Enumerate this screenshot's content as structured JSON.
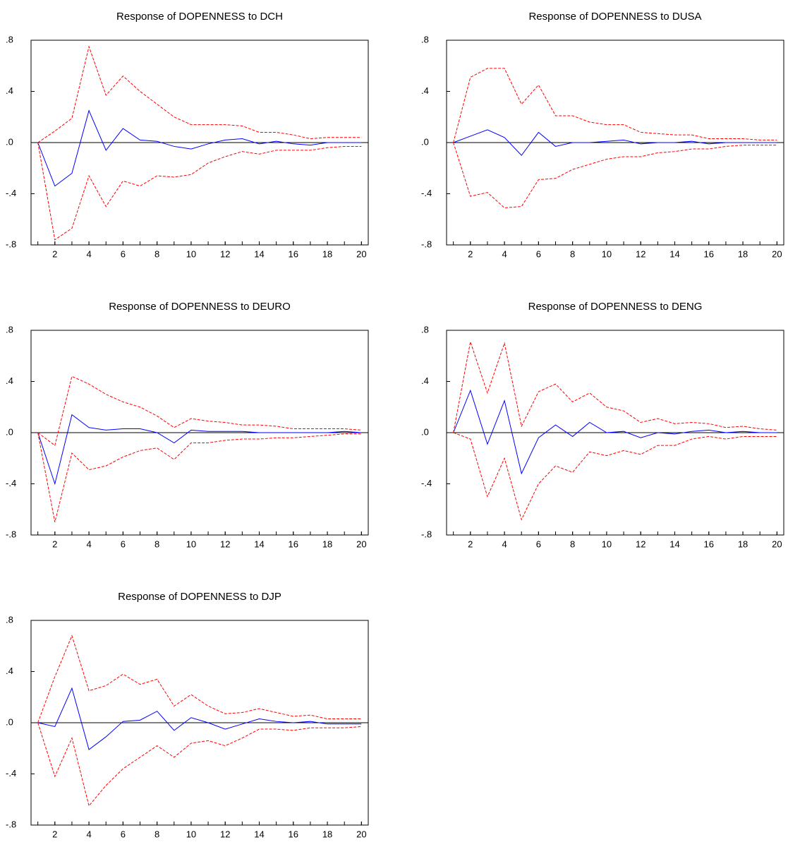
{
  "chart_data": [
    {
      "type": "line",
      "title": "Response of DOPENNESS to DCH",
      "x": [
        1,
        2,
        3,
        4,
        5,
        6,
        7,
        8,
        9,
        10,
        11,
        12,
        13,
        14,
        15,
        16,
        17,
        18,
        19,
        20
      ],
      "xlim": [
        0.6,
        20.4
      ],
      "xticks": [
        2,
        4,
        6,
        8,
        10,
        12,
        14,
        16,
        18,
        20
      ],
      "ylim": [
        -0.8,
        0.8
      ],
      "yticks": [
        {
          "value": -0.8,
          "label": "-.8"
        },
        {
          "value": -0.4,
          "label": "-.4"
        },
        {
          "value": 0,
          "label": ".0"
        },
        {
          "value": 0.4,
          "label": ".4"
        },
        {
          "value": 0.8,
          "label": ".8"
        }
      ],
      "series": [
        {
          "color": "#0000ff",
          "values": [
            0,
            -0.34,
            -0.24,
            0.25,
            -0.06,
            0.11,
            0.02,
            0.01,
            -0.03,
            -0.05,
            -0.01,
            0.02,
            0.03,
            -0.01,
            0.01,
            -0.01,
            -0.02,
            0,
            0,
            0
          ]
        },
        {
          "color": "#ff0000",
          "dashed": true,
          "values": [
            0,
            0.09,
            0.19,
            0.75,
            0.37,
            0.52,
            0.4,
            0.3,
            0.2,
            0.14,
            0.14,
            0.14,
            0.13,
            0.08,
            0.08,
            0.06,
            0.03,
            0.04,
            0.04,
            0.04
          ]
        },
        {
          "color": "#ff0000",
          "dashed": true,
          "values": [
            0,
            -0.76,
            -0.67,
            -0.26,
            -0.5,
            -0.3,
            -0.34,
            -0.26,
            -0.27,
            -0.25,
            -0.16,
            -0.11,
            -0.07,
            -0.09,
            -0.06,
            -0.06,
            -0.06,
            -0.04,
            -0.03,
            -0.03
          ]
        }
      ]
    },
    {
      "type": "line",
      "title": "Response of DOPENNESS to DUSA",
      "x": [
        1,
        2,
        3,
        4,
        5,
        6,
        7,
        8,
        9,
        10,
        11,
        12,
        13,
        14,
        15,
        16,
        17,
        18,
        19,
        20
      ],
      "xlim": [
        0.6,
        20.4
      ],
      "xticks": [
        2,
        4,
        6,
        8,
        10,
        12,
        14,
        16,
        18,
        20
      ],
      "ylim": [
        -0.8,
        0.8
      ],
      "yticks": [
        {
          "value": -0.8,
          "label": "-.8"
        },
        {
          "value": -0.4,
          "label": "-.4"
        },
        {
          "value": 0,
          "label": ".0"
        },
        {
          "value": 0.4,
          "label": ".4"
        },
        {
          "value": 0.8,
          "label": ".8"
        }
      ],
      "series": [
        {
          "color": "#0000ff",
          "values": [
            0,
            0.05,
            0.1,
            0.04,
            -0.1,
            0.08,
            -0.03,
            0,
            0,
            0.01,
            0.02,
            -0.01,
            0,
            0,
            0.01,
            -0.01,
            0,
            0,
            0,
            0
          ]
        },
        {
          "color": "#ff0000",
          "dashed": true,
          "values": [
            0,
            0.51,
            0.58,
            0.58,
            0.3,
            0.45,
            0.21,
            0.21,
            0.16,
            0.14,
            0.14,
            0.08,
            0.07,
            0.06,
            0.06,
            0.03,
            0.03,
            0.03,
            0.02,
            0.02
          ]
        },
        {
          "color": "#ff0000",
          "dashed": true,
          "values": [
            0,
            -0.42,
            -0.39,
            -0.51,
            -0.5,
            -0.29,
            -0.28,
            -0.21,
            -0.17,
            -0.13,
            -0.11,
            -0.11,
            -0.08,
            -0.07,
            -0.05,
            -0.05,
            -0.03,
            -0.02,
            -0.02,
            -0.02
          ]
        }
      ]
    },
    {
      "type": "line",
      "title": "Response of DOPENNESS to DEURO",
      "x": [
        1,
        2,
        3,
        4,
        5,
        6,
        7,
        8,
        9,
        10,
        11,
        12,
        13,
        14,
        15,
        16,
        17,
        18,
        19,
        20
      ],
      "xlim": [
        0.6,
        20.4
      ],
      "xticks": [
        2,
        4,
        6,
        8,
        10,
        12,
        14,
        16,
        18,
        20
      ],
      "ylim": [
        -0.8,
        0.8
      ],
      "yticks": [
        {
          "value": -0.8,
          "label": "-.8"
        },
        {
          "value": -0.4,
          "label": "-.4"
        },
        {
          "value": 0,
          "label": ".0"
        },
        {
          "value": 0.4,
          "label": ".4"
        },
        {
          "value": 0.8,
          "label": ".8"
        }
      ],
      "series": [
        {
          "color": "#0000ff",
          "values": [
            0,
            -0.4,
            0.14,
            0.04,
            0.02,
            0.03,
            0.03,
            0,
            -0.08,
            0.02,
            0.01,
            0.01,
            0.01,
            0,
            0,
            0,
            0,
            0,
            0.01,
            0
          ]
        },
        {
          "color": "#ff0000",
          "dashed": true,
          "values": [
            0,
            -0.1,
            0.44,
            0.38,
            0.3,
            0.24,
            0.2,
            0.13,
            0.04,
            0.11,
            0.09,
            0.08,
            0.06,
            0.06,
            0.05,
            0.03,
            0.03,
            0.03,
            0.03,
            0.02
          ]
        },
        {
          "color": "#ff0000",
          "dashed": true,
          "values": [
            0,
            -0.7,
            -0.16,
            -0.29,
            -0.26,
            -0.19,
            -0.14,
            -0.12,
            -0.21,
            -0.08,
            -0.08,
            -0.06,
            -0.05,
            -0.05,
            -0.04,
            -0.04,
            -0.03,
            -0.02,
            -0.01,
            -0.01
          ]
        }
      ]
    },
    {
      "type": "line",
      "title": "Response of DOPENNESS to DENG",
      "x": [
        1,
        2,
        3,
        4,
        5,
        6,
        7,
        8,
        9,
        10,
        11,
        12,
        13,
        14,
        15,
        16,
        17,
        18,
        19,
        20
      ],
      "xlim": [
        0.6,
        20.4
      ],
      "xticks": [
        2,
        4,
        6,
        8,
        10,
        12,
        14,
        16,
        18,
        20
      ],
      "ylim": [
        -0.8,
        0.8
      ],
      "yticks": [
        {
          "value": -0.8,
          "label": "-.8"
        },
        {
          "value": -0.4,
          "label": "-.4"
        },
        {
          "value": 0,
          "label": ".0"
        },
        {
          "value": 0.4,
          "label": ".4"
        },
        {
          "value": 0.8,
          "label": ".8"
        }
      ],
      "series": [
        {
          "color": "#0000ff",
          "values": [
            0,
            0.33,
            -0.09,
            0.25,
            -0.32,
            -0.04,
            0.06,
            -0.03,
            0.08,
            0,
            0.01,
            -0.04,
            0,
            -0.01,
            0.01,
            0.02,
            0,
            0.01,
            0,
            0
          ]
        },
        {
          "color": "#ff0000",
          "dashed": true,
          "values": [
            0,
            0.71,
            0.31,
            0.7,
            0.05,
            0.32,
            0.38,
            0.24,
            0.31,
            0.2,
            0.17,
            0.08,
            0.11,
            0.07,
            0.08,
            0.07,
            0.04,
            0.05,
            0.03,
            0.02
          ]
        },
        {
          "color": "#ff0000",
          "dashed": true,
          "values": [
            0,
            -0.05,
            -0.5,
            -0.2,
            -0.68,
            -0.4,
            -0.26,
            -0.31,
            -0.15,
            -0.18,
            -0.14,
            -0.17,
            -0.1,
            -0.1,
            -0.05,
            -0.03,
            -0.05,
            -0.03,
            -0.03,
            -0.03
          ]
        }
      ]
    },
    {
      "type": "line",
      "title": "Response of DOPENNESS to DJP",
      "x": [
        1,
        2,
        3,
        4,
        5,
        6,
        7,
        8,
        9,
        10,
        11,
        12,
        13,
        14,
        15,
        16,
        17,
        18,
        19,
        20
      ],
      "xlim": [
        0.6,
        20.4
      ],
      "xticks": [
        2,
        4,
        6,
        8,
        10,
        12,
        14,
        16,
        18,
        20
      ],
      "ylim": [
        -0.8,
        0.8
      ],
      "yticks": [
        {
          "value": -0.8,
          "label": "-.8"
        },
        {
          "value": -0.4,
          "label": "-.4"
        },
        {
          "value": 0,
          "label": ".0"
        },
        {
          "value": 0.4,
          "label": ".4"
        },
        {
          "value": 0.8,
          "label": ".8"
        }
      ],
      "series": [
        {
          "color": "#0000ff",
          "values": [
            0,
            -0.03,
            0.27,
            -0.21,
            -0.11,
            0.01,
            0.02,
            0.09,
            -0.06,
            0.04,
            0,
            -0.05,
            -0.01,
            0.03,
            0.01,
            0,
            0.01,
            -0.01,
            -0.01,
            -0.01
          ]
        },
        {
          "color": "#ff0000",
          "dashed": true,
          "values": [
            0,
            0.36,
            0.68,
            0.25,
            0.29,
            0.38,
            0.3,
            0.34,
            0.13,
            0.22,
            0.13,
            0.07,
            0.08,
            0.11,
            0.08,
            0.05,
            0.06,
            0.03,
            0.03,
            0.03
          ]
        },
        {
          "color": "#ff0000",
          "dashed": true,
          "values": [
            0,
            -0.42,
            -0.12,
            -0.65,
            -0.49,
            -0.36,
            -0.27,
            -0.18,
            -0.27,
            -0.16,
            -0.14,
            -0.18,
            -0.12,
            -0.05,
            -0.05,
            -0.06,
            -0.04,
            -0.04,
            -0.04,
            -0.03
          ]
        }
      ]
    }
  ]
}
